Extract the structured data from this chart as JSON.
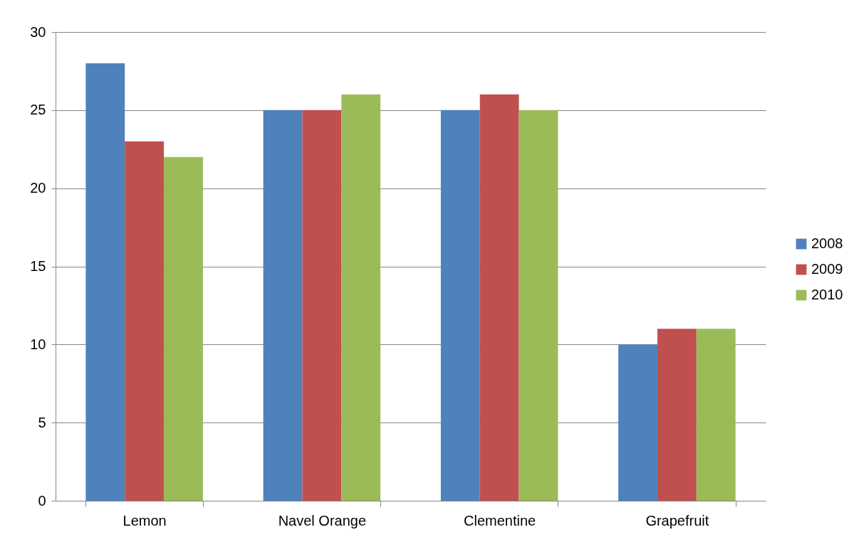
{
  "chart_data": {
    "type": "bar",
    "categories": [
      "Lemon",
      "Navel Orange",
      "Clementine",
      "Grapefruit"
    ],
    "series": [
      {
        "name": "2008",
        "color": "#4f81bd",
        "values": [
          28,
          25,
          25,
          10
        ]
      },
      {
        "name": "2009",
        "color": "#c0504d",
        "values": [
          23,
          25,
          26,
          11
        ]
      },
      {
        "name": "2010",
        "color": "#9bbb59",
        "values": [
          22,
          26,
          25,
          11
        ]
      }
    ],
    "ylim": [
      0,
      30
    ],
    "yticks": [
      0,
      5,
      10,
      15,
      20,
      25,
      30
    ],
    "grid": "y",
    "legend": "right"
  }
}
